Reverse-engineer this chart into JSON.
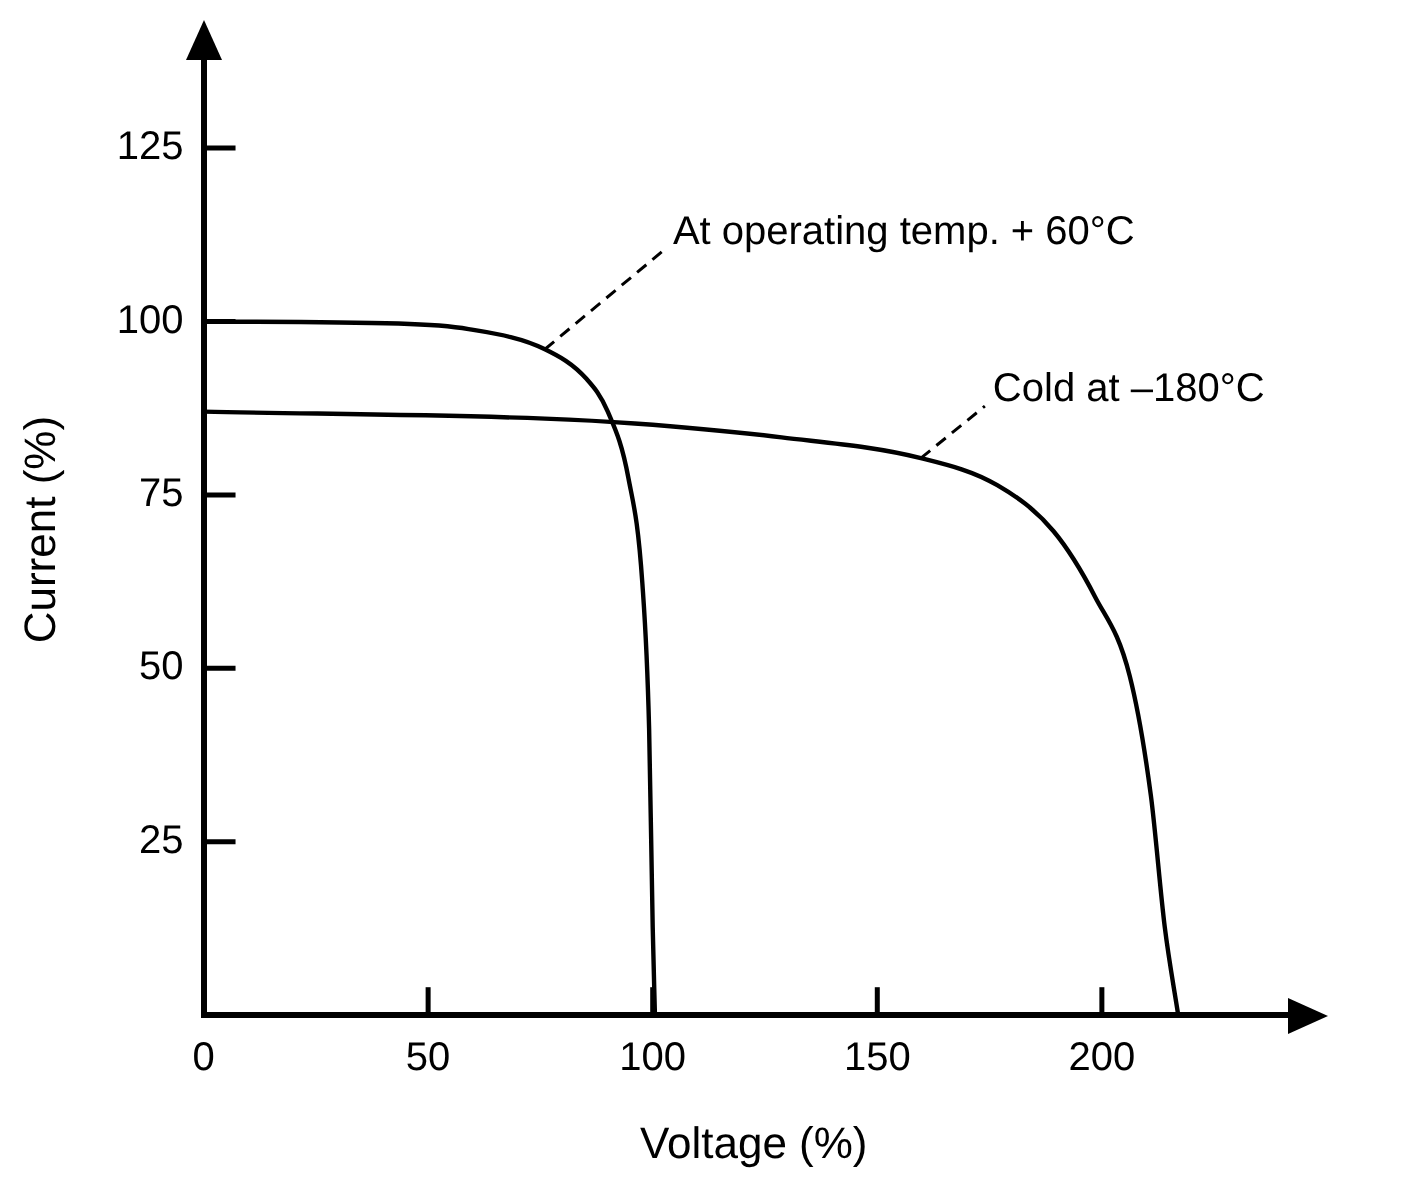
{
  "chart_data": {
    "type": "line",
    "xlabel": "Voltage (%)",
    "ylabel": "Current (%)",
    "xlim": [
      0,
      245
    ],
    "ylim": [
      0,
      140
    ],
    "xticks": [
      0,
      50,
      100,
      150,
      200
    ],
    "yticks": [
      25,
      50,
      75,
      100,
      125
    ],
    "grid": false,
    "legend": false,
    "marker": "none",
    "line_style": "solid",
    "series": [
      {
        "color": "#000000",
        "x": [
          0,
          43.4,
          59,
          76,
          85.3,
          90,
          94.6,
          97.7,
          99.2,
          100,
          100.5
        ],
        "values": [
          100,
          99.7,
          98.9,
          96,
          91.7,
          87,
          77.4,
          62.2,
          41.3,
          12.7,
          0
        ]
      },
      {
        "color": "#000000",
        "x": [
          0,
          76,
          96,
          128.7,
          159.7,
          176.7,
          189.2,
          198.5,
          206.2,
          210.9,
          214,
          217
        ],
        "values": [
          87,
          86,
          85.3,
          83.3,
          80.3,
          76.4,
          69.8,
          60.3,
          48.9,
          31.7,
          12.7,
          0
        ]
      }
    ],
    "annotations": [
      {
        "text": "At operating temp. + 60°C",
        "x": 76,
        "y": 96
      },
      {
        "text": "Cold at –180°C",
        "x": 159.7,
        "y": 80.3
      }
    ]
  }
}
